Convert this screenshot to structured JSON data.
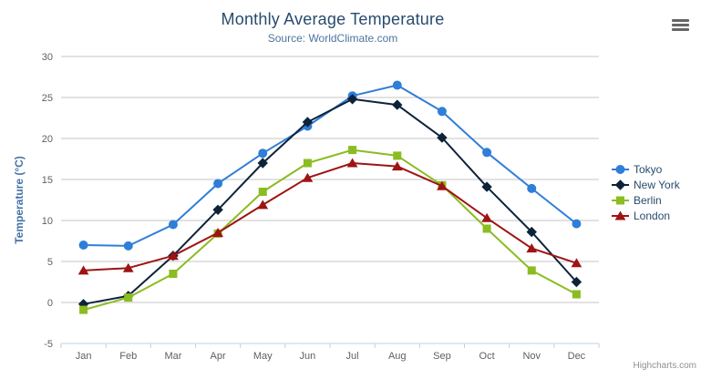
{
  "chart_data": {
    "type": "line",
    "title": "Monthly Average Temperature",
    "subtitle": "Source: WorldClimate.com",
    "categories": [
      "Jan",
      "Feb",
      "Mar",
      "Apr",
      "May",
      "Jun",
      "Jul",
      "Aug",
      "Sep",
      "Oct",
      "Nov",
      "Dec"
    ],
    "series": [
      {
        "name": "Tokyo",
        "color": "#2f7ed8",
        "marker": "circle",
        "values": [
          7.0,
          6.9,
          9.5,
          14.5,
          18.2,
          21.5,
          25.2,
          26.5,
          23.3,
          18.3,
          13.9,
          9.6
        ]
      },
      {
        "name": "New York",
        "color": "#0d233a",
        "marker": "diamond",
        "values": [
          -0.2,
          0.8,
          5.7,
          11.3,
          17.0,
          22.0,
          24.8,
          24.1,
          20.1,
          14.1,
          8.6,
          2.5
        ]
      },
      {
        "name": "Berlin",
        "color": "#8bbc21",
        "marker": "square",
        "values": [
          -0.9,
          0.6,
          3.5,
          8.4,
          13.5,
          17.0,
          18.6,
          17.9,
          14.3,
          9.0,
          3.9,
          1.0
        ]
      },
      {
        "name": "London",
        "color": "#9e1414",
        "marker": "triangle",
        "values": [
          3.9,
          4.2,
          5.7,
          8.5,
          11.9,
          15.2,
          17.0,
          16.6,
          14.2,
          10.3,
          6.6,
          4.8
        ]
      }
    ],
    "xlabel": "",
    "ylabel": "Temperature (°C)",
    "ylim": [
      -5,
      30
    ],
    "ytick_step": 5,
    "grid": true,
    "legend_position": "right"
  },
  "colors": {
    "title": "#274b6d",
    "subtitle": "#4d759e",
    "axis_title": "#4572a7",
    "axis_labels": "#606060",
    "gridline": "#c6c6c6",
    "axis_line": "#c0d0e0",
    "legend_text": "#274b6d",
    "credits": "#909090",
    "menu_icon": "#666666",
    "background": "#ffffff"
  },
  "credits": {
    "label": "Highcharts.com"
  }
}
